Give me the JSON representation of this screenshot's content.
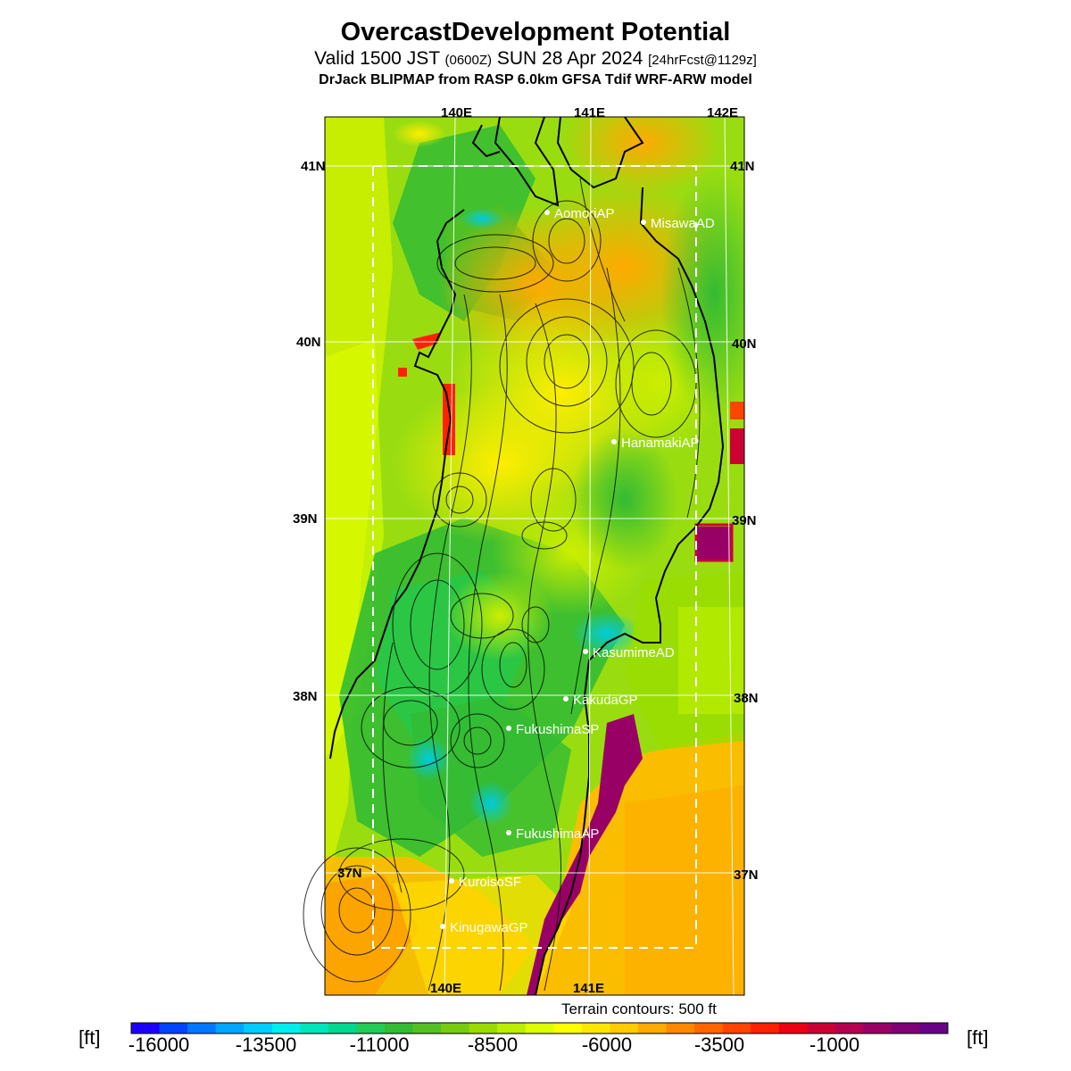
{
  "header": {
    "title": "OvercastDevelopment Potential",
    "valid_main": "Valid 1500 JST ",
    "valid_utc": "(0600Z)",
    "valid_date": " SUN 28 Apr 2024 ",
    "forecast": "[24hrFcst@1129z]",
    "model": "DrJack BLIPMAP from RASP 6.0km GFSA Tdif WRF-ARW model"
  },
  "map": {
    "lon_labels_top": [
      "140E",
      "141E",
      "142E"
    ],
    "lon_labels_bottom": [
      "140E",
      "141E"
    ],
    "lat_labels_left": [
      "41N",
      "40N",
      "39N",
      "38N",
      "37N"
    ],
    "lat_labels_right": [
      "41N",
      "40N",
      "39N",
      "38N",
      "37N"
    ],
    "stations": [
      {
        "name": "AomoriAP"
      },
      {
        "name": "MisawaAD"
      },
      {
        "name": "HanamakiAP"
      },
      {
        "name": "KasumimeAD"
      },
      {
        "name": "KakudaGP"
      },
      {
        "name": "FukushimaSP"
      },
      {
        "name": "FukushimaAP"
      },
      {
        "name": "KuroisoSF"
      },
      {
        "name": "KinugawaGP"
      }
    ]
  },
  "legend": {
    "terrain_note": "Terrain contours: 500 ft",
    "unit": "[ft]",
    "tick_labels": [
      "-16000",
      "-13500",
      "-11000",
      "-8500",
      "-6000",
      "-3500",
      "-1000"
    ],
    "colors": [
      "#1a00ff",
      "#0044ff",
      "#0077ff",
      "#00a6ff",
      "#00ccff",
      "#00eeee",
      "#00e6bb",
      "#00d890",
      "#22cc55",
      "#33bb33",
      "#55c022",
      "#77cc11",
      "#99dd00",
      "#bbee00",
      "#ddff00",
      "#ffff00",
      "#ffe600",
      "#ffcc00",
      "#ffaa00",
      "#ff8800",
      "#ff6600",
      "#ff4400",
      "#ff2200",
      "#ee0011",
      "#cc0033",
      "#b30050",
      "#990066",
      "#800077",
      "#6a0088"
    ]
  }
}
